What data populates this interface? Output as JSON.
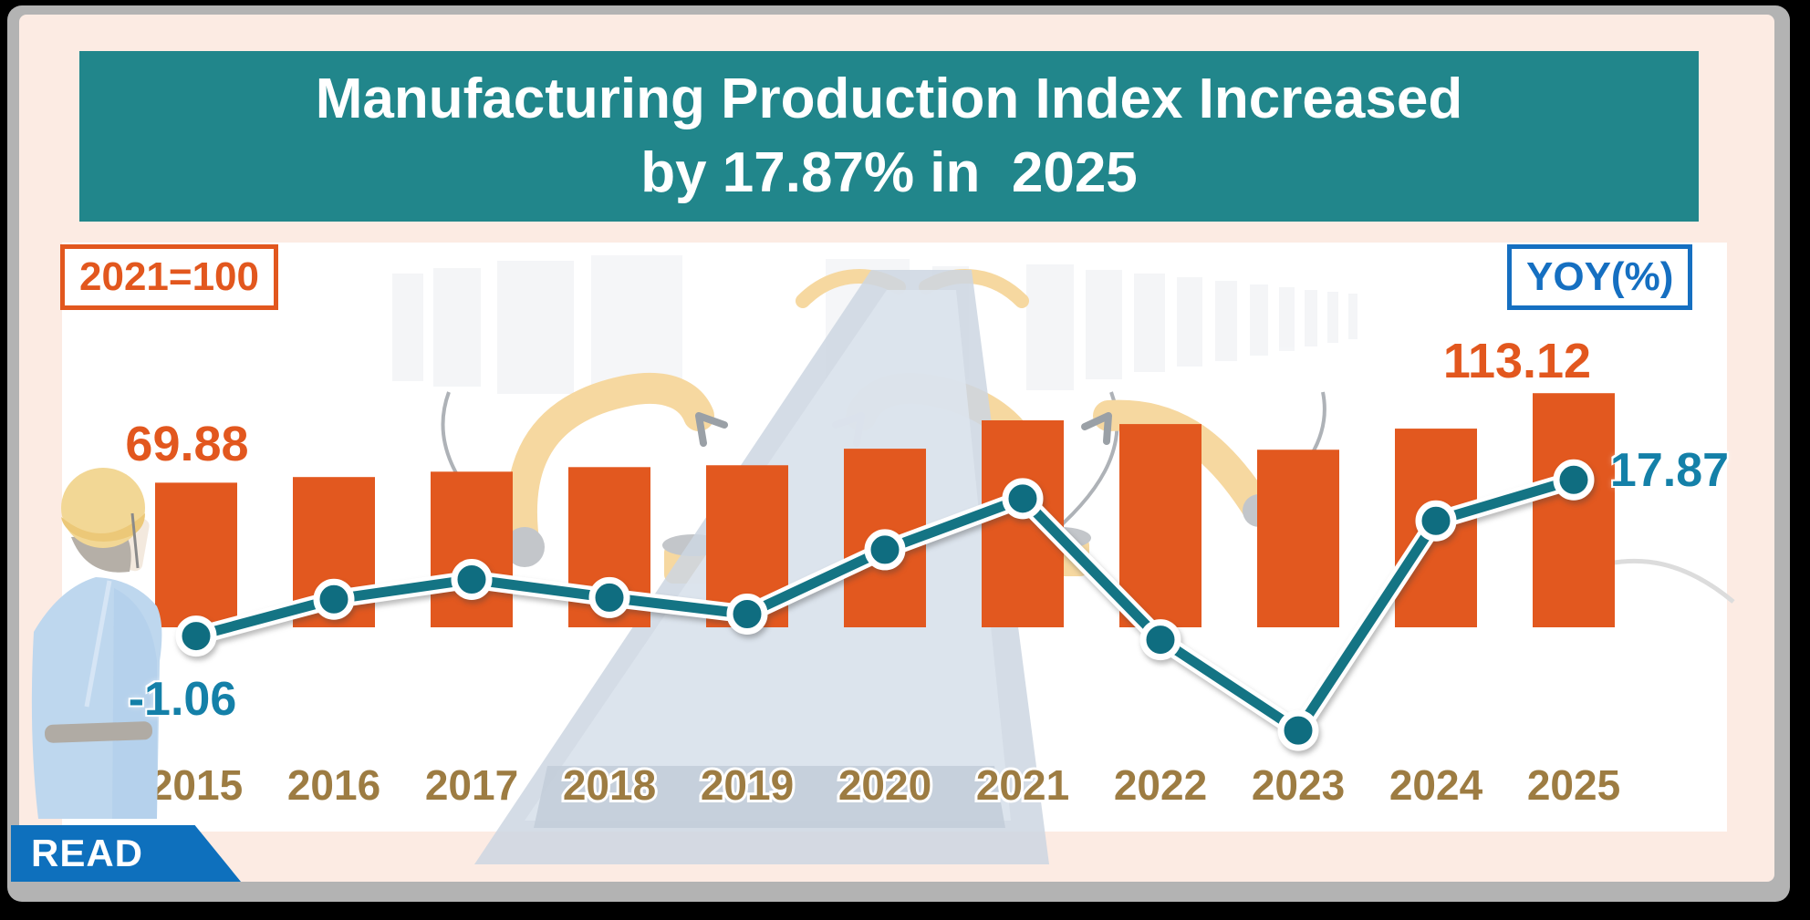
{
  "title": {
    "line1": "Manufacturing Production Index Increased",
    "line2": "by 17.87% in  2025"
  },
  "legend": {
    "index_base_label": "2021=100",
    "yoy_label": "YOY(%)"
  },
  "read_ribbon": {
    "label": "READ"
  },
  "colors": {
    "frame-black": "#000000",
    "frame-gray": "#b3b3b3",
    "background-pink": "#fcebe3",
    "panel-white": "#ffffff",
    "banner-teal": "#21868b",
    "title-white": "#ffffff",
    "bar-orange": "#e2581f",
    "index-label-orange": "#e2571e",
    "index-box-orange": "#e2571e",
    "line-teal": "#147484",
    "dot-teal": "#0f6d80",
    "yoy-label-blue": "#1480a8",
    "yoy-box-blue": "#156fc1",
    "year-brown": "#9d7c42",
    "read-ribbon-blue": "#0e70bd",
    "robot-yellow": "#f6d8a0",
    "conveyor-blue-gray": "#ccd6e2",
    "worker-coat-blue": "#bed7ee",
    "worker-hat-yellow": "#f2d795"
  },
  "chart_data": {
    "type": "bar",
    "title": "Manufacturing Production Index Increased by 17.87% in 2025",
    "categories": [
      "2015",
      "2016",
      "2017",
      "2018",
      "2019",
      "2020",
      "2021",
      "2022",
      "2023",
      "2024",
      "2025"
    ],
    "series": [
      {
        "name": "Manufacturing Production Index (2021=100)",
        "type": "bar",
        "color": "#e2581f",
        "values": [
          69.88,
          72.6,
          75.2,
          77.4,
          78.3,
          86.3,
          100.0,
          98.2,
          85.8,
          96.0,
          113.12
        ]
      },
      {
        "name": "YOY(%)",
        "type": "line",
        "color": "#147484",
        "values": [
          -1.06,
          3.4,
          5.8,
          3.6,
          1.6,
          9.4,
          15.6,
          -1.5,
          -12.5,
          12.9,
          17.87
        ]
      }
    ],
    "annotations": [
      {
        "target": "index-2015",
        "text": "69.88"
      },
      {
        "target": "index-2025",
        "text": "113.12"
      },
      {
        "target": "yoy-2015",
        "text": "-1.06"
      },
      {
        "target": "yoy-2025",
        "text": "17.87"
      }
    ],
    "xlabel": "",
    "ylabel": "",
    "legend_position": "top-corners",
    "grid": false,
    "axes_hidden": true
  }
}
